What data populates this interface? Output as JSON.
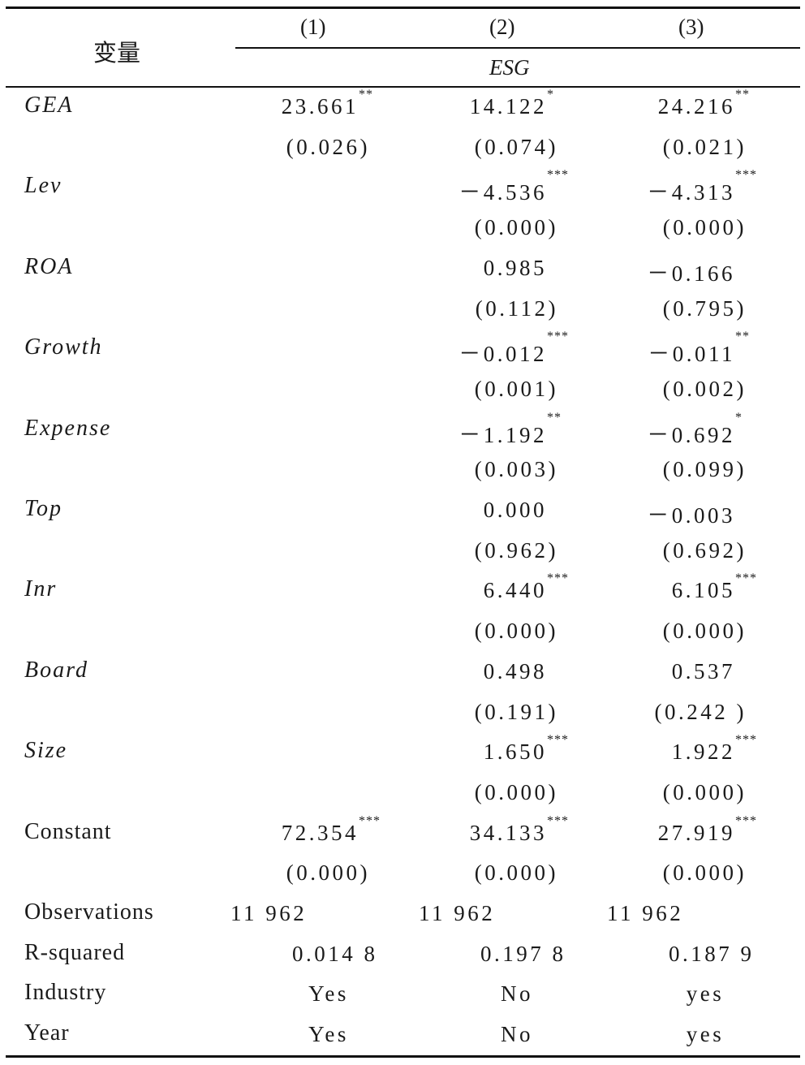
{
  "header": {
    "variable_label": "变量",
    "columns": [
      "(1)",
      "(2)",
      "(3)"
    ],
    "dependent": "ESG"
  },
  "rows": [
    {
      "label": "GEA",
      "italic": true,
      "values": [
        {
          "coef": "23.661",
          "stars": "**",
          "p": "(0.026)"
        },
        {
          "coef": "14.122",
          "stars": "*",
          "p": "(0.074)"
        },
        {
          "coef": "24.216",
          "stars": "**",
          "p": "(0.021)"
        }
      ]
    },
    {
      "label": "Lev",
      "italic": true,
      "values": [
        null,
        {
          "coef": "－4.536",
          "stars": "***",
          "p": "(0.000)"
        },
        {
          "coef": "－4.313",
          "stars": "***",
          "p": "(0.000)"
        }
      ]
    },
    {
      "label": "ROA",
      "italic": true,
      "values": [
        null,
        {
          "coef": "0.985",
          "stars": "",
          "p": "(0.112)"
        },
        {
          "coef": "－0.166",
          "stars": "",
          "p": "(0.795)"
        }
      ]
    },
    {
      "label": "Growth",
      "italic": true,
      "values": [
        null,
        {
          "coef": "－0.012",
          "stars": "***",
          "p": "(0.001)"
        },
        {
          "coef": "－0.011",
          "stars": "**",
          "p": "(0.002)"
        }
      ]
    },
    {
      "label": "Expense",
      "italic": true,
      "values": [
        null,
        {
          "coef": "－1.192",
          "stars": "**",
          "p": "(0.003)"
        },
        {
          "coef": "－0.692",
          "stars": "*",
          "p": "(0.099)"
        }
      ]
    },
    {
      "label": "Top",
      "italic": true,
      "values": [
        null,
        {
          "coef": "0.000",
          "stars": "",
          "p": "(0.962)"
        },
        {
          "coef": "－0.003",
          "stars": "",
          "p": "(0.692)"
        }
      ]
    },
    {
      "label": "Inr",
      "italic": true,
      "values": [
        null,
        {
          "coef": "6.440",
          "stars": "***",
          "p": "(0.000)"
        },
        {
          "coef": "6.105",
          "stars": "***",
          "p": "(0.000)"
        }
      ]
    },
    {
      "label": "Board",
      "italic": true,
      "values": [
        null,
        {
          "coef": "0.498",
          "stars": "",
          "p": "(0.191)"
        },
        {
          "coef": "0.537",
          "stars": "",
          "p": "(0.242 )"
        }
      ]
    },
    {
      "label": "Size",
      "italic": true,
      "values": [
        null,
        {
          "coef": "1.650",
          "stars": "***",
          "p": "(0.000)"
        },
        {
          "coef": "1.922",
          "stars": "***",
          "p": "(0.000)"
        }
      ]
    },
    {
      "label": "Constant",
      "italic": false,
      "values": [
        {
          "coef": "72.354",
          "stars": "***",
          "p": "(0.000)"
        },
        {
          "coef": "34.133",
          "stars": "***",
          "p": "(0.000)"
        },
        {
          "coef": "27.919",
          "stars": "***",
          "p": "(0.000)"
        }
      ]
    }
  ],
  "footer": [
    {
      "label": "Observations",
      "kind": "obs",
      "values": [
        "11 962",
        "11 962",
        "11 962"
      ]
    },
    {
      "label": "R-squared",
      "kind": "r2",
      "values": [
        "0.014 8",
        "0.197 8",
        "0.187 9"
      ]
    },
    {
      "label": "Industry",
      "kind": "ctr",
      "values": [
        "Yes",
        "No",
        "yes"
      ]
    },
    {
      "label": "Year",
      "kind": "ctr",
      "values": [
        "Yes",
        "No",
        "yes"
      ]
    }
  ]
}
